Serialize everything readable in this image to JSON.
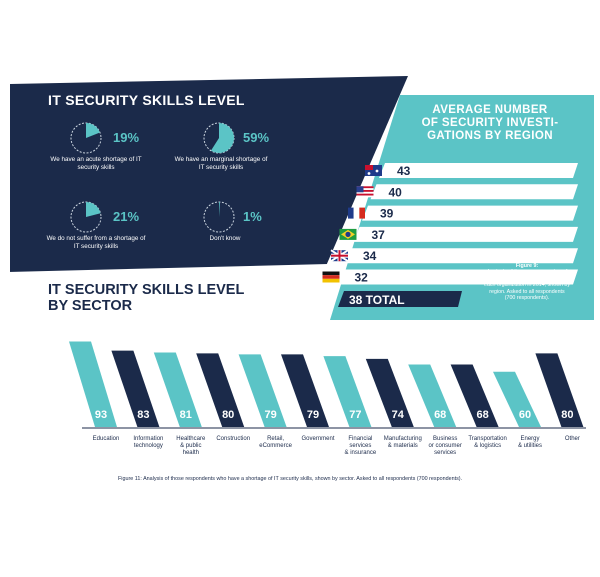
{
  "skills_panel": {
    "title": "IT SECURITY SKILLS LEVEL",
    "items": [
      {
        "percent": "19%",
        "value": 19,
        "label": "We have an acute shortage of IT security skills"
      },
      {
        "percent": "59%",
        "value": 59,
        "label": "We have an marginal shortage of IT security skills"
      },
      {
        "percent": "21%",
        "value": 21,
        "label": "We do not suffer from a shortage of IT security skills"
      },
      {
        "percent": "1%",
        "value": 1,
        "label": "Don't know"
      }
    ]
  },
  "region_panel": {
    "title": "AVERAGE NUMBER OF SECURITY INVESTI-GATIONS BY REGION",
    "title_lines": [
      "AVERAGE NUMBER",
      "OF SECURITY INVESTI-",
      "GATIONS BY REGION"
    ],
    "total": "38 TOTAL",
    "note_title": "Figure 9:",
    "note": "Analysis of the average number of security investiga-tions conducted in each organization in 2014, shown by region. Asked to all respondents (700 respondents).",
    "regions": [
      {
        "flag": "australia-flag",
        "value": 43
      },
      {
        "flag": "usa-flag",
        "value": 40
      },
      {
        "flag": "france-flag",
        "value": 39
      },
      {
        "flag": "brazil-flag",
        "value": 37
      },
      {
        "flag": "uk-flag",
        "value": 34
      },
      {
        "flag": "germany-flag",
        "value": 32
      }
    ]
  },
  "sector_panel": {
    "title_line1": "IT SECURITY SKILLS LEVEL",
    "title_line2": "BY SECTOR"
  },
  "caption": "Figure 11: Analysis of those respondents who have a shortage of IT security skills, shown by sector. Asked to all respondents (700 respondents).",
  "colors": {
    "navy": "#1b2a4a",
    "teal": "#5bc4c6",
    "white": "#ffffff"
  },
  "chart_data": {
    "type": "bar",
    "title": "IT SECURITY SKILLS LEVEL BY SECTOR",
    "categories": [
      "Education",
      "Information technology",
      "Healthcare & public health",
      "Construction",
      "Retail, eCommerce",
      "Government",
      "Financial services & insurance",
      "Manufacturing & materials",
      "Business or consumer services",
      "Transportation & logistics",
      "Energy & utilities",
      "Other"
    ],
    "category_lines": [
      [
        "Education"
      ],
      [
        "Information",
        "technology"
      ],
      [
        "Healthcare",
        "& public",
        "health"
      ],
      [
        "Construction"
      ],
      [
        "Retail,",
        "eCommerce"
      ],
      [
        "Government"
      ],
      [
        "Financial",
        "services",
        "& insurance"
      ],
      [
        "Manufacturing",
        "& materials"
      ],
      [
        "Business",
        "or consumer",
        "services"
      ],
      [
        "Transportation",
        "& logistics"
      ],
      [
        "Energy",
        "& utilities"
      ],
      [
        "Other"
      ]
    ],
    "values": [
      93,
      83,
      81,
      80,
      79,
      79,
      77,
      74,
      68,
      68,
      60,
      80
    ],
    "ylim": [
      0,
      100
    ]
  }
}
